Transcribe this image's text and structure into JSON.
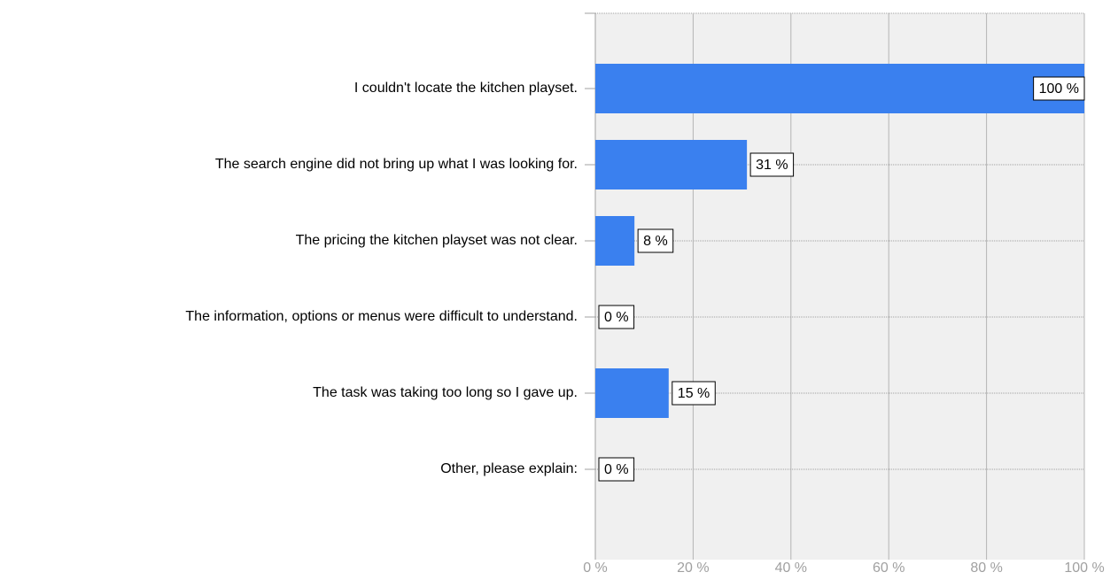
{
  "chart_data": {
    "type": "bar",
    "orientation": "horizontal",
    "categories": [
      "I couldn't locate the kitchen playset.",
      "The search engine did not bring up what I was looking for.",
      "The pricing the kitchen playset was not clear.",
      "The information, options or menus were difficult to understand.",
      "The task was taking too long so I gave up.",
      "Other, please explain:"
    ],
    "values": [
      100,
      31,
      8,
      0,
      15,
      0
    ],
    "value_labels": [
      "100 %",
      "31 %",
      "8 %",
      "0 %",
      "15 %",
      "0 %"
    ],
    "color": "#3a80ef",
    "xlim": [
      0,
      100
    ],
    "xticks": [
      {
        "value": 0,
        "label": "0 %"
      },
      {
        "value": 20,
        "label": "20 %"
      },
      {
        "value": 40,
        "label": "40 %"
      },
      {
        "value": 60,
        "label": "60 %"
      },
      {
        "value": 80,
        "label": "80 %"
      },
      {
        "value": 100,
        "label": "100 %"
      }
    ],
    "grid": true
  }
}
